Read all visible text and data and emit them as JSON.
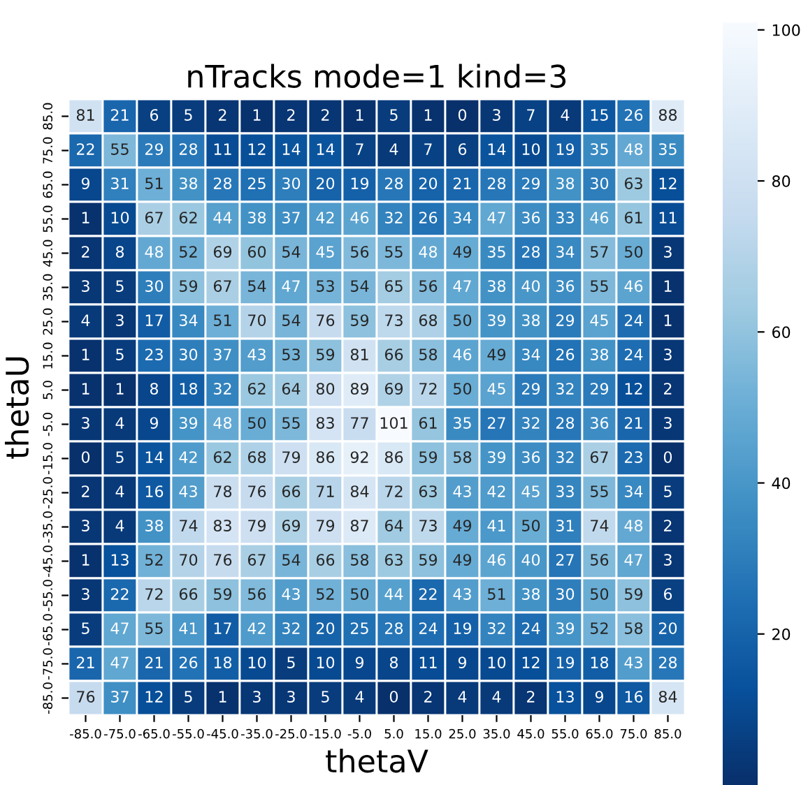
{
  "chart_data": {
    "type": "heatmap",
    "title": "nTracks mode=1 kind=3",
    "xlabel": "thetaV",
    "ylabel": "thetaU",
    "categories": [
      "-85.0",
      "-75.0",
      "-65.0",
      "-55.0",
      "-45.0",
      "-35.0",
      "-25.0",
      "-15.0",
      "-5.0",
      "5.0",
      "15.0",
      "25.0",
      "35.0",
      "45.0",
      "55.0",
      "65.0",
      "75.0",
      "85.0"
    ],
    "y_categories": [
      "85.0",
      "75.0",
      "65.0",
      "55.0",
      "45.0",
      "35.0",
      "25.0",
      "15.0",
      "5.0",
      "-5.0",
      "-15.0",
      "-25.0",
      "-35.0",
      "-45.0",
      "-55.0",
      "-65.0",
      "-75.0",
      "-85.0"
    ],
    "cells": [
      [
        81,
        21,
        6,
        5,
        2,
        1,
        2,
        2,
        1,
        5,
        1,
        0,
        3,
        7,
        4,
        15,
        26,
        88
      ],
      [
        22,
        55,
        29,
        28,
        11,
        12,
        14,
        14,
        7,
        4,
        7,
        6,
        14,
        10,
        19,
        35,
        48,
        35
      ],
      [
        9,
        31,
        51,
        38,
        28,
        25,
        30,
        20,
        19,
        28,
        20,
        21,
        28,
        29,
        38,
        30,
        63,
        12
      ],
      [
        1,
        10,
        67,
        62,
        44,
        38,
        37,
        42,
        46,
        32,
        26,
        34,
        47,
        36,
        33,
        46,
        61,
        11
      ],
      [
        2,
        8,
        48,
        52,
        69,
        60,
        54,
        45,
        56,
        55,
        48,
        49,
        35,
        28,
        34,
        57,
        50,
        3
      ],
      [
        3,
        5,
        30,
        59,
        67,
        54,
        47,
        53,
        54,
        65,
        56,
        47,
        38,
        40,
        36,
        55,
        46,
        1
      ],
      [
        4,
        3,
        17,
        34,
        51,
        70,
        54,
        76,
        59,
        73,
        68,
        50,
        39,
        38,
        29,
        45,
        24,
        1
      ],
      [
        1,
        5,
        23,
        30,
        37,
        43,
        53,
        59,
        81,
        66,
        58,
        46,
        49,
        34,
        26,
        38,
        24,
        3
      ],
      [
        1,
        1,
        8,
        18,
        32,
        62,
        64,
        80,
        89,
        69,
        72,
        50,
        45,
        29,
        32,
        29,
        12,
        2
      ],
      [
        3,
        4,
        9,
        39,
        48,
        50,
        55,
        83,
        77,
        101,
        61,
        35,
        27,
        32,
        28,
        36,
        21,
        3
      ],
      [
        0,
        5,
        14,
        42,
        62,
        68,
        79,
        86,
        92,
        86,
        59,
        58,
        39,
        36,
        32,
        67,
        23,
        0
      ],
      [
        2,
        4,
        16,
        43,
        78,
        76,
        66,
        71,
        84,
        72,
        63,
        43,
        42,
        45,
        33,
        55,
        34,
        5
      ],
      [
        3,
        4,
        38,
        74,
        83,
        79,
        69,
        79,
        87,
        64,
        73,
        49,
        41,
        50,
        31,
        74,
        48,
        2
      ],
      [
        1,
        13,
        52,
        70,
        76,
        67,
        54,
        66,
        58,
        63,
        59,
        49,
        46,
        40,
        27,
        56,
        47,
        3
      ],
      [
        3,
        22,
        72,
        66,
        59,
        56,
        43,
        52,
        50,
        44,
        22,
        43,
        51,
        38,
        30,
        50,
        59,
        6
      ],
      [
        5,
        47,
        55,
        41,
        17,
        42,
        32,
        20,
        25,
        28,
        24,
        19,
        32,
        24,
        39,
        52,
        58,
        20
      ],
      [
        21,
        47,
        21,
        26,
        18,
        10,
        5,
        10,
        9,
        8,
        11,
        9,
        10,
        12,
        19,
        18,
        43,
        28
      ],
      [
        76,
        37,
        12,
        5,
        1,
        3,
        3,
        5,
        4,
        0,
        2,
        4,
        4,
        2,
        13,
        9,
        16,
        84
      ]
    ],
    "clim": [
      0,
      101
    ],
    "cticks": [
      20,
      40,
      60,
      80,
      100
    ],
    "data_labels": true
  }
}
